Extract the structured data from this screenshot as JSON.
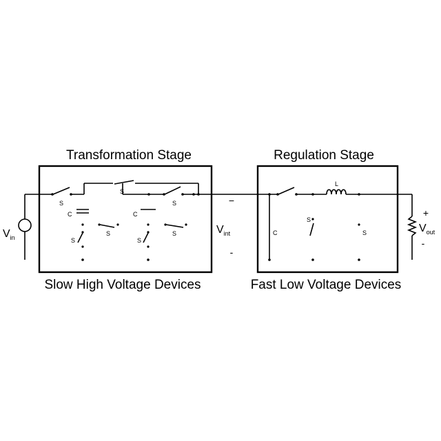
{
  "diagram": {
    "stages": [
      {
        "title": "Transformation Stage",
        "caption": "Slow High Voltage Devices"
      },
      {
        "title": "Regulation Stage",
        "caption": "Fast Low Voltage Devices"
      }
    ],
    "source_label": "V",
    "source_subscript": "in",
    "intermediate_label": "V",
    "intermediate_subscript": "int",
    "load_label": "V",
    "load_subscript": "out",
    "plus_sign": "+",
    "minus_sign": "-",
    "switch_labels": [
      "S",
      "S",
      "S",
      "S",
      "S",
      "S",
      "S"
    ],
    "cap_labels": [
      "C",
      "C",
      "C"
    ],
    "inductor_label": "L"
  }
}
